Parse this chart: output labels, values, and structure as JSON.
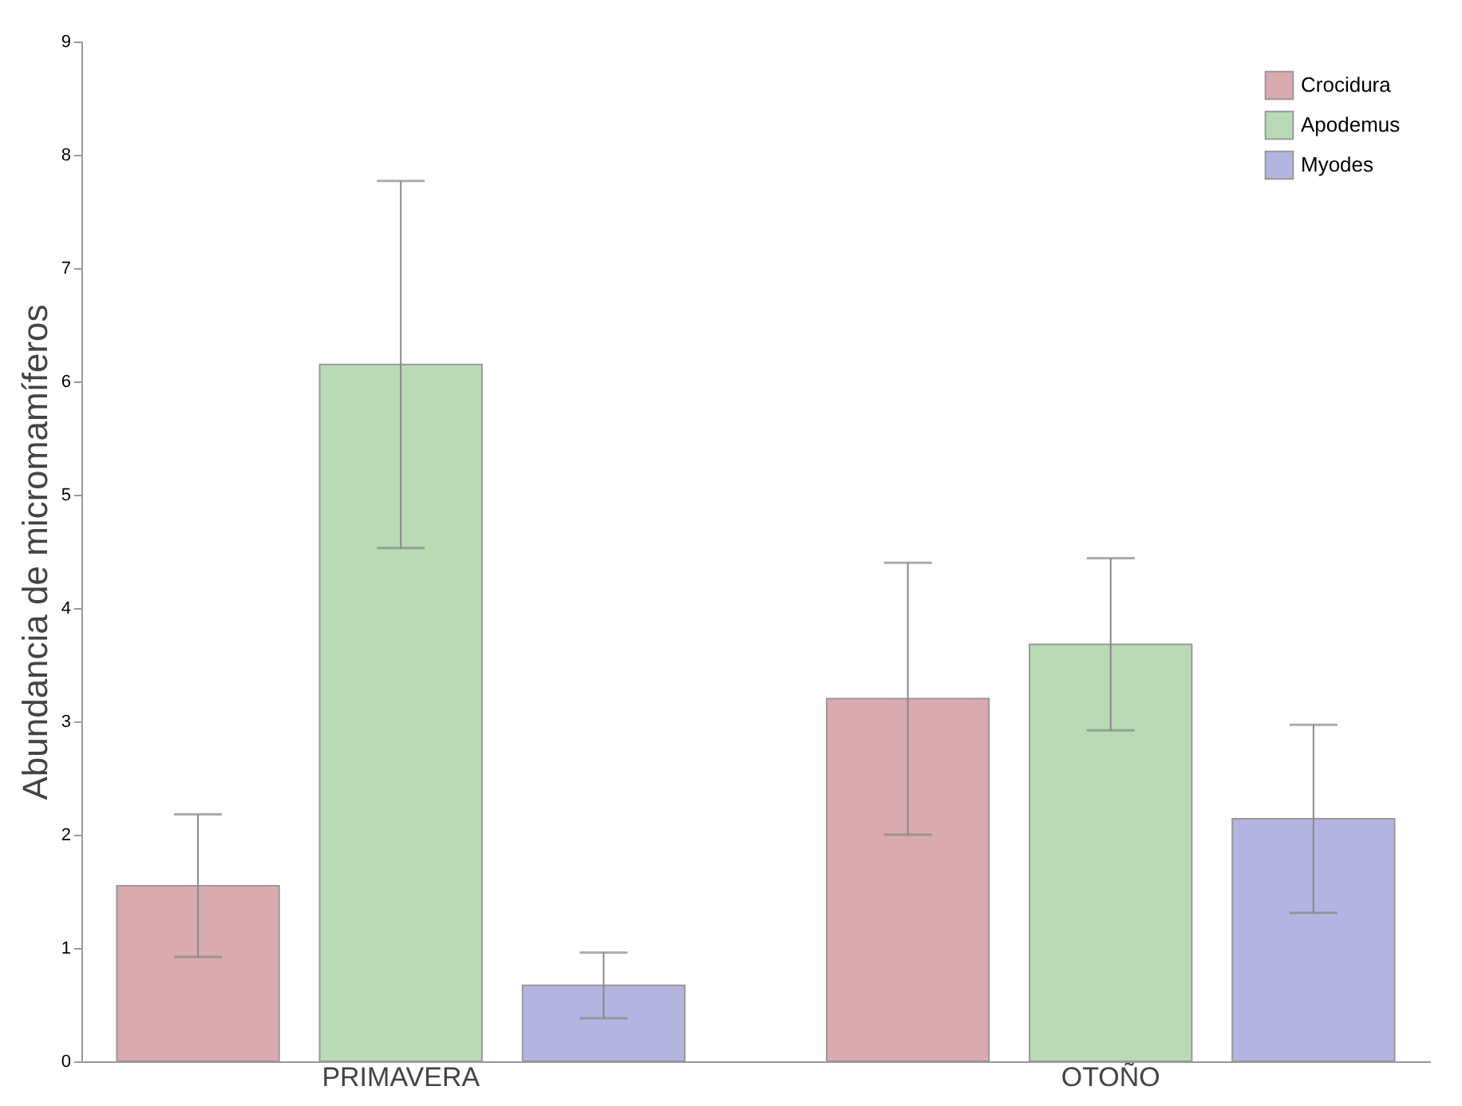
{
  "chart_data": {
    "type": "bar",
    "ylabel": "Abundancia de micromamíferos",
    "categories": [
      "PRIMAVERA",
      "OTOÑO"
    ],
    "series": [
      {
        "name": "Crocidura",
        "color": "#d9aab0",
        "values": [
          1.55,
          3.2
        ],
        "errors": [
          0.63,
          1.2
        ]
      },
      {
        "name": "Apodemus",
        "color": "#b8dbb6",
        "values": [
          6.15,
          3.68
        ],
        "errors": [
          1.62,
          0.76
        ]
      },
      {
        "name": "Myodes",
        "color": "#b4b4e0",
        "values": [
          0.67,
          2.14
        ],
        "errors": [
          0.29,
          0.83
        ]
      }
    ],
    "ylim": [
      0,
      9
    ],
    "yticks": [
      0,
      1,
      2,
      3,
      4,
      5,
      6,
      7,
      8,
      9
    ],
    "grid": false,
    "legend": "top right"
  }
}
